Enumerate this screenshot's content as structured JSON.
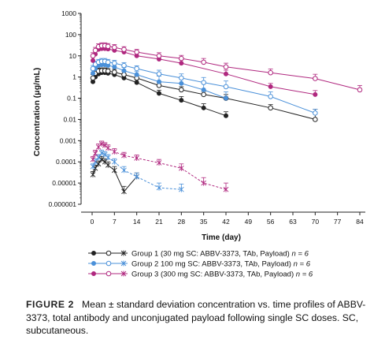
{
  "chart_data": {
    "type": "line",
    "xlabel": "Time (day)",
    "ylabel": "Concentration (μg/mL)",
    "yscale": "log",
    "xlim": [
      -2,
      86
    ],
    "ylim": [
      1e-06,
      1000
    ],
    "x_ticks": [
      0,
      7,
      14,
      21,
      28,
      35,
      42,
      49,
      56,
      63,
      70,
      77,
      84
    ],
    "y_ticks": [
      {
        "value": 1000,
        "label": "1000"
      },
      {
        "value": 100,
        "label": "100"
      },
      {
        "value": 10,
        "label": "10"
      },
      {
        "value": 1,
        "label": "1"
      },
      {
        "value": 0.1,
        "label": "0.1"
      },
      {
        "value": 0.01,
        "label": "0.01"
      },
      {
        "value": 0.001,
        "label": "0.001"
      },
      {
        "value": 0.0001,
        "label": "0.0001"
      },
      {
        "value": 1e-05,
        "label": "0.00001"
      },
      {
        "value": 1e-06,
        "label": "0.000001"
      }
    ],
    "legend": [
      {
        "label": "Group 1 (30 mg SC: ABBV-3373, TAb, Payload) ",
        "n": "n = 6",
        "color": "#222222"
      },
      {
        "label": "Group 2 100 mg SC: ABBV-3373, TAb, Payload) ",
        "n": "n = 6",
        "color": "#4a90d9"
      },
      {
        "label": "Group 3 (300 mg SC: ABBV-3373, TAb, Payload) ",
        "n": "n = 6",
        "color": "#b0287f"
      }
    ],
    "legend_position": "bottom",
    "series": [
      {
        "group": 1,
        "analyte": "ABBV-3373",
        "color": "#222222",
        "marker": "filled-circle",
        "dash": false,
        "x": [
          0.25,
          1,
          2,
          3,
          4,
          5,
          7,
          10,
          14,
          21,
          28,
          35,
          42
        ],
        "y": [
          0.6,
          1.0,
          1.4,
          1.6,
          1.6,
          1.5,
          1.3,
          0.9,
          0.55,
          0.17,
          0.08,
          0.035,
          0.015
        ],
        "err": [
          0.3,
          0.4,
          0.5,
          0.6,
          0.6,
          0.5,
          0.5,
          0.35,
          0.2,
          0.07,
          0.04,
          0.02,
          0.008
        ]
      },
      {
        "group": 1,
        "analyte": "TAb",
        "color": "#222222",
        "marker": "open-circle",
        "dash": false,
        "x": [
          0.25,
          1,
          2,
          3,
          4,
          5,
          7,
          10,
          14,
          21,
          28,
          35,
          42,
          56,
          70
        ],
        "y": [
          0.9,
          1.5,
          1.9,
          2.0,
          2.0,
          1.9,
          1.7,
          1.3,
          0.9,
          0.4,
          0.25,
          0.15,
          0.1,
          0.035,
          0.01
        ],
        "err": [
          0.4,
          0.6,
          0.7,
          0.7,
          0.7,
          0.6,
          0.6,
          0.5,
          0.3,
          0.15,
          0.1,
          0.06,
          0.05,
          0.015,
          0.02
        ]
      },
      {
        "group": 1,
        "analyte": "Payload",
        "color": "#222222",
        "marker": "star",
        "dash": false,
        "x": [
          0.25,
          1,
          2,
          3,
          4,
          5,
          7,
          10,
          14
        ],
        "y": [
          2.5e-05,
          5e-05,
          8e-05,
          0.00013,
          0.0001,
          7e-05,
          4e-05,
          4e-06,
          2e-05
        ],
        "err": [
          1e-05,
          2e-05,
          3e-05,
          5e-05,
          4e-05,
          3e-05,
          2e-05,
          3e-06,
          1e-05
        ]
      },
      {
        "group": 2,
        "analyte": "ABBV-3373",
        "color": "#4a90d9",
        "marker": "filled-circle",
        "dash": false,
        "x": [
          0.25,
          1,
          2,
          3,
          4,
          5,
          7,
          10,
          14,
          21,
          28,
          35,
          42
        ],
        "y": [
          1.5,
          2.5,
          3.5,
          3.8,
          3.8,
          3.5,
          3.0,
          2.0,
          1.3,
          0.6,
          0.5,
          0.25,
          0.1
        ],
        "err": [
          0.6,
          1.0,
          1.2,
          1.3,
          1.3,
          1.2,
          1.1,
          0.8,
          0.5,
          0.5,
          0.5,
          0.3,
          0.1
        ]
      },
      {
        "group": 2,
        "analyte": "TAb",
        "color": "#4a90d9",
        "marker": "open-circle",
        "dash": false,
        "x": [
          0.25,
          1,
          2,
          3,
          4,
          5,
          7,
          10,
          14,
          21,
          28,
          35,
          42,
          56,
          70
        ],
        "y": [
          2.5,
          4.0,
          5.0,
          5.5,
          5.5,
          5.0,
          4.5,
          3.5,
          2.5,
          1.4,
          0.9,
          0.55,
          0.35,
          0.12,
          0.02
        ],
        "err": [
          1.0,
          1.5,
          1.8,
          2.0,
          2.0,
          1.8,
          1.6,
          1.3,
          0.9,
          0.7,
          0.5,
          0.4,
          0.3,
          0.08,
          0.01
        ]
      },
      {
        "group": 2,
        "analyte": "Payload",
        "color": "#4a90d9",
        "marker": "star",
        "dash": true,
        "x": [
          0.25,
          1,
          2,
          3,
          4,
          5,
          7,
          10,
          14,
          21,
          28
        ],
        "y": [
          6e-05,
          0.0001,
          0.00016,
          0.00026,
          0.00022,
          0.00016,
          0.0001,
          4e-05,
          2e-05,
          6e-06,
          5e-06
        ],
        "err": [
          2e-05,
          4e-05,
          6e-05,
          0.0001,
          8e-05,
          6e-05,
          4e-05,
          2e-05,
          1e-05,
          4e-06,
          4e-06
        ]
      },
      {
        "group": 3,
        "analyte": "ABBV-3373",
        "color": "#b0287f",
        "marker": "filled-circle",
        "dash": false,
        "x": [
          0.25,
          1,
          2,
          3,
          4,
          5,
          7,
          10,
          14,
          21,
          28,
          42,
          56,
          70
        ],
        "y": [
          6,
          12,
          20,
          22,
          22,
          21,
          18,
          15,
          10,
          7,
          4.5,
          1.4,
          0.35,
          0.15
        ],
        "err": [
          3,
          5,
          8,
          9,
          9,
          8,
          7,
          6,
          4,
          3,
          2,
          0.7,
          0.15,
          0.08
        ]
      },
      {
        "group": 3,
        "analyte": "TAb",
        "color": "#b0287f",
        "marker": "open-circle",
        "dash": false,
        "x": [
          0.25,
          1,
          2,
          3,
          4,
          5,
          7,
          10,
          14,
          21,
          28,
          35,
          42,
          56,
          70,
          84
        ],
        "y": [
          10,
          18,
          27,
          30,
          30,
          28,
          25,
          20,
          15,
          10,
          7.5,
          5.0,
          3.0,
          1.6,
          0.85,
          0.25
        ],
        "err": [
          4,
          7,
          10,
          11,
          11,
          10,
          9,
          7,
          5,
          4,
          3,
          2.5,
          1.5,
          0.8,
          0.5,
          0.15
        ]
      },
      {
        "group": 3,
        "analyte": "Payload",
        "color": "#b0287f",
        "marker": "star",
        "dash": true,
        "x": [
          0.25,
          1,
          2,
          3,
          4,
          5,
          7,
          10,
          14,
          21,
          28,
          35,
          42
        ],
        "y": [
          0.00013,
          0.00025,
          0.0005,
          0.0007,
          0.0006,
          0.00045,
          0.0003,
          0.0002,
          0.00015,
          9e-05,
          5e-05,
          1e-05,
          5e-06
        ],
        "err": [
          5e-05,
          0.0001,
          0.0002,
          0.00025,
          0.0002,
          0.00018,
          0.00012,
          8e-05,
          6e-05,
          4e-05,
          3e-05,
          8e-06,
          5e-06
        ]
      }
    ]
  },
  "caption": {
    "label": "FIGURE 2",
    "text": "Mean ± standard deviation concentration vs. time profiles of ABBV-3373, total antibody and unconjugated payload following single SC doses. SC, subcutaneous."
  }
}
